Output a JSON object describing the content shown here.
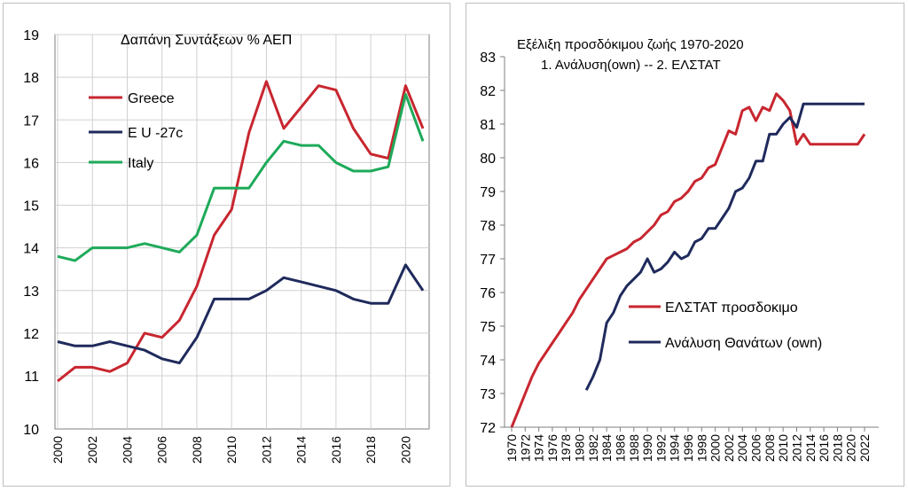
{
  "chart_data": [
    {
      "type": "line",
      "title": "Δαπάνη Συντάξεων % ΑΕΠ",
      "xlabel": "",
      "ylabel": "",
      "xlim": [
        2000,
        2021
      ],
      "ylim": [
        10,
        19
      ],
      "xticks": [
        "2000",
        "2002",
        "2004",
        "2006",
        "2008",
        "2010",
        "2012",
        "2014",
        "2016",
        "2018",
        "2020"
      ],
      "yticks": [
        "10",
        "11",
        "12",
        "13",
        "14",
        "15",
        "16",
        "17",
        "18",
        "19"
      ],
      "grid": true,
      "legend_position": "top-left",
      "series": [
        {
          "name": "Greece",
          "color": "#c8262f",
          "x": [
            2000,
            2001,
            2002,
            2003,
            2004,
            2005,
            2006,
            2007,
            2008,
            2009,
            2010,
            2011,
            2012,
            2013,
            2014,
            2015,
            2016,
            2017,
            2018,
            2019,
            2020,
            2021
          ],
          "values": [
            10.9,
            11.2,
            11.2,
            11.1,
            11.3,
            12.0,
            11.9,
            12.3,
            13.1,
            14.3,
            14.9,
            16.7,
            17.9,
            16.8,
            17.3,
            17.8,
            17.7,
            16.8,
            16.2,
            16.1,
            17.8,
            16.8
          ]
        },
        {
          "name": "E U -27c",
          "color": "#1f2a5c",
          "x": [
            2000,
            2001,
            2002,
            2003,
            2004,
            2005,
            2006,
            2007,
            2008,
            2009,
            2010,
            2011,
            2012,
            2013,
            2014,
            2015,
            2016,
            2017,
            2018,
            2019,
            2020,
            2021
          ],
          "values": [
            11.8,
            11.7,
            11.7,
            11.8,
            11.7,
            11.6,
            11.4,
            11.3,
            11.9,
            12.8,
            12.8,
            12.8,
            13.0,
            13.3,
            13.2,
            13.1,
            13.0,
            12.8,
            12.7,
            12.7,
            13.6,
            13.0
          ]
        },
        {
          "name": "Italy",
          "color": "#1eaa5a",
          "x": [
            2000,
            2001,
            2002,
            2003,
            2004,
            2005,
            2006,
            2007,
            2008,
            2009,
            2010,
            2011,
            2012,
            2013,
            2014,
            2015,
            2016,
            2017,
            2018,
            2019,
            2020,
            2021
          ],
          "values": [
            13.8,
            13.7,
            14.0,
            14.0,
            14.0,
            14.1,
            14.0,
            13.9,
            14.3,
            15.4,
            15.4,
            15.4,
            16.0,
            16.5,
            16.4,
            16.4,
            16.0,
            15.8,
            15.8,
            15.9,
            17.6,
            16.5
          ]
        }
      ]
    },
    {
      "type": "line",
      "title": "Εξέλιξη προσδόκιμου ζωής 1970-2020",
      "subtitle": "1. Ανάλυση(own) --  2. ΕΛΣΤΑΤ",
      "xlabel": "",
      "ylabel": "",
      "xlim": [
        1970,
        2022
      ],
      "ylim": [
        72,
        83
      ],
      "xticks": [
        "1970",
        "1972",
        "1974",
        "1976",
        "1978",
        "1980",
        "1982",
        "1984",
        "1986",
        "1988",
        "1990",
        "1992",
        "1994",
        "1996",
        "1998",
        "2000",
        "2002",
        "2004",
        "2006",
        "2008",
        "2010",
        "2012",
        "2014",
        "2016",
        "2018",
        "2020",
        "2022"
      ],
      "yticks": [
        "72",
        "73",
        "74",
        "75",
        "76",
        "77",
        "78",
        "79",
        "80",
        "81",
        "82",
        "83"
      ],
      "grid": false,
      "legend_position": "bottom-right",
      "series": [
        {
          "name": "ΕΛΣΤΑΤ προσδοκιμο",
          "color": "#c8262f",
          "x": [
            1970,
            1971,
            1972,
            1973,
            1974,
            1975,
            1976,
            1977,
            1978,
            1979,
            1980,
            1981,
            1982,
            1983,
            1984,
            1985,
            1986,
            1987,
            1988,
            1989,
            1990,
            1991,
            1992,
            1993,
            1994,
            1995,
            1996,
            1997,
            1998,
            1999,
            2000,
            2001,
            2002,
            2003,
            2004,
            2005,
            2006,
            2007,
            2008,
            2009,
            2010,
            2011,
            2012,
            2013,
            2014,
            2015,
            2016,
            2017,
            2018,
            2019,
            2020,
            2021,
            2022
          ],
          "values": [
            72.0,
            72.5,
            73.0,
            73.5,
            73.9,
            74.2,
            74.5,
            74.8,
            75.1,
            75.4,
            75.8,
            76.1,
            76.4,
            76.7,
            77.0,
            77.1,
            77.2,
            77.3,
            77.5,
            77.6,
            77.8,
            78.0,
            78.3,
            78.4,
            78.7,
            78.8,
            79.0,
            79.3,
            79.4,
            79.7,
            79.8,
            80.3,
            80.8,
            80.7,
            81.4,
            81.5,
            81.1,
            81.5,
            81.4,
            81.9,
            81.7,
            81.4,
            80.4,
            80.7,
            80.4,
            80.4,
            80.4,
            80.4,
            80.4,
            80.4,
            80.4,
            80.4,
            80.7
          ]
        },
        {
          "name": "Ανάλυση Θανάτων (own)",
          "color": "#1f2a5c",
          "x": [
            1981,
            1982,
            1983,
            1984,
            1985,
            1986,
            1987,
            1988,
            1989,
            1990,
            1991,
            1992,
            1993,
            1994,
            1995,
            1996,
            1997,
            1998,
            1999,
            2000,
            2001,
            2002,
            2003,
            2004,
            2005,
            2006,
            2007,
            2008,
            2009,
            2010,
            2011,
            2012,
            2013,
            2014,
            2015,
            2016,
            2017,
            2018,
            2019,
            2020,
            2021,
            2022
          ],
          "values": [
            73.1,
            73.5,
            74.0,
            75.1,
            75.4,
            75.9,
            76.2,
            76.4,
            76.6,
            77.0,
            76.6,
            76.7,
            76.9,
            77.2,
            77.0,
            77.1,
            77.5,
            77.6,
            77.9,
            77.9,
            78.2,
            78.5,
            79.0,
            79.1,
            79.4,
            79.9,
            79.9,
            80.7,
            80.7,
            81.0,
            81.2,
            80.9,
            81.6,
            81.6,
            81.6,
            81.6,
            81.6,
            81.6,
            81.6,
            81.6,
            81.6,
            81.6
          ]
        }
      ]
    }
  ]
}
